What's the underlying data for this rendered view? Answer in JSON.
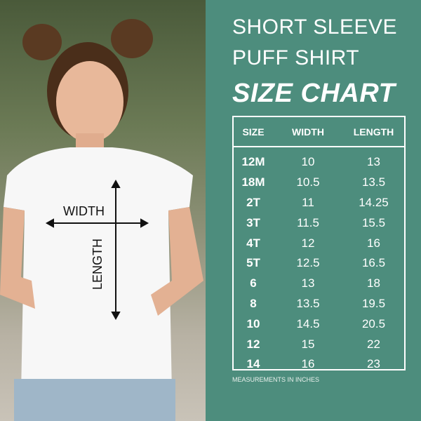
{
  "title": {
    "line1": "SHORT SLEEVE",
    "line2": "PUFF SHIRT",
    "line3": "SIZE CHART"
  },
  "table": {
    "headers": [
      "SIZE",
      "WIDTH",
      "LENGTH"
    ],
    "rows": [
      [
        "12M",
        "10",
        "13"
      ],
      [
        "18M",
        "10.5",
        "13.5"
      ],
      [
        "2T",
        "11",
        "14.25"
      ],
      [
        "3T",
        "11.5",
        "15.5"
      ],
      [
        "4T",
        "12",
        "16"
      ],
      [
        "5T",
        "12.5",
        "16.5"
      ],
      [
        "6",
        "13",
        "18"
      ],
      [
        "8",
        "13.5",
        "19.5"
      ],
      [
        "10",
        "14.5",
        "20.5"
      ],
      [
        "12",
        "15",
        "22"
      ],
      [
        "14",
        "16",
        "23"
      ]
    ]
  },
  "note": "MEASUREMENTS IN INCHES",
  "photo": {
    "width_label": "WIDTH",
    "length_label": "LENGTH"
  },
  "colors": {
    "background": "#4d8d7d",
    "text": "#ffffff"
  }
}
